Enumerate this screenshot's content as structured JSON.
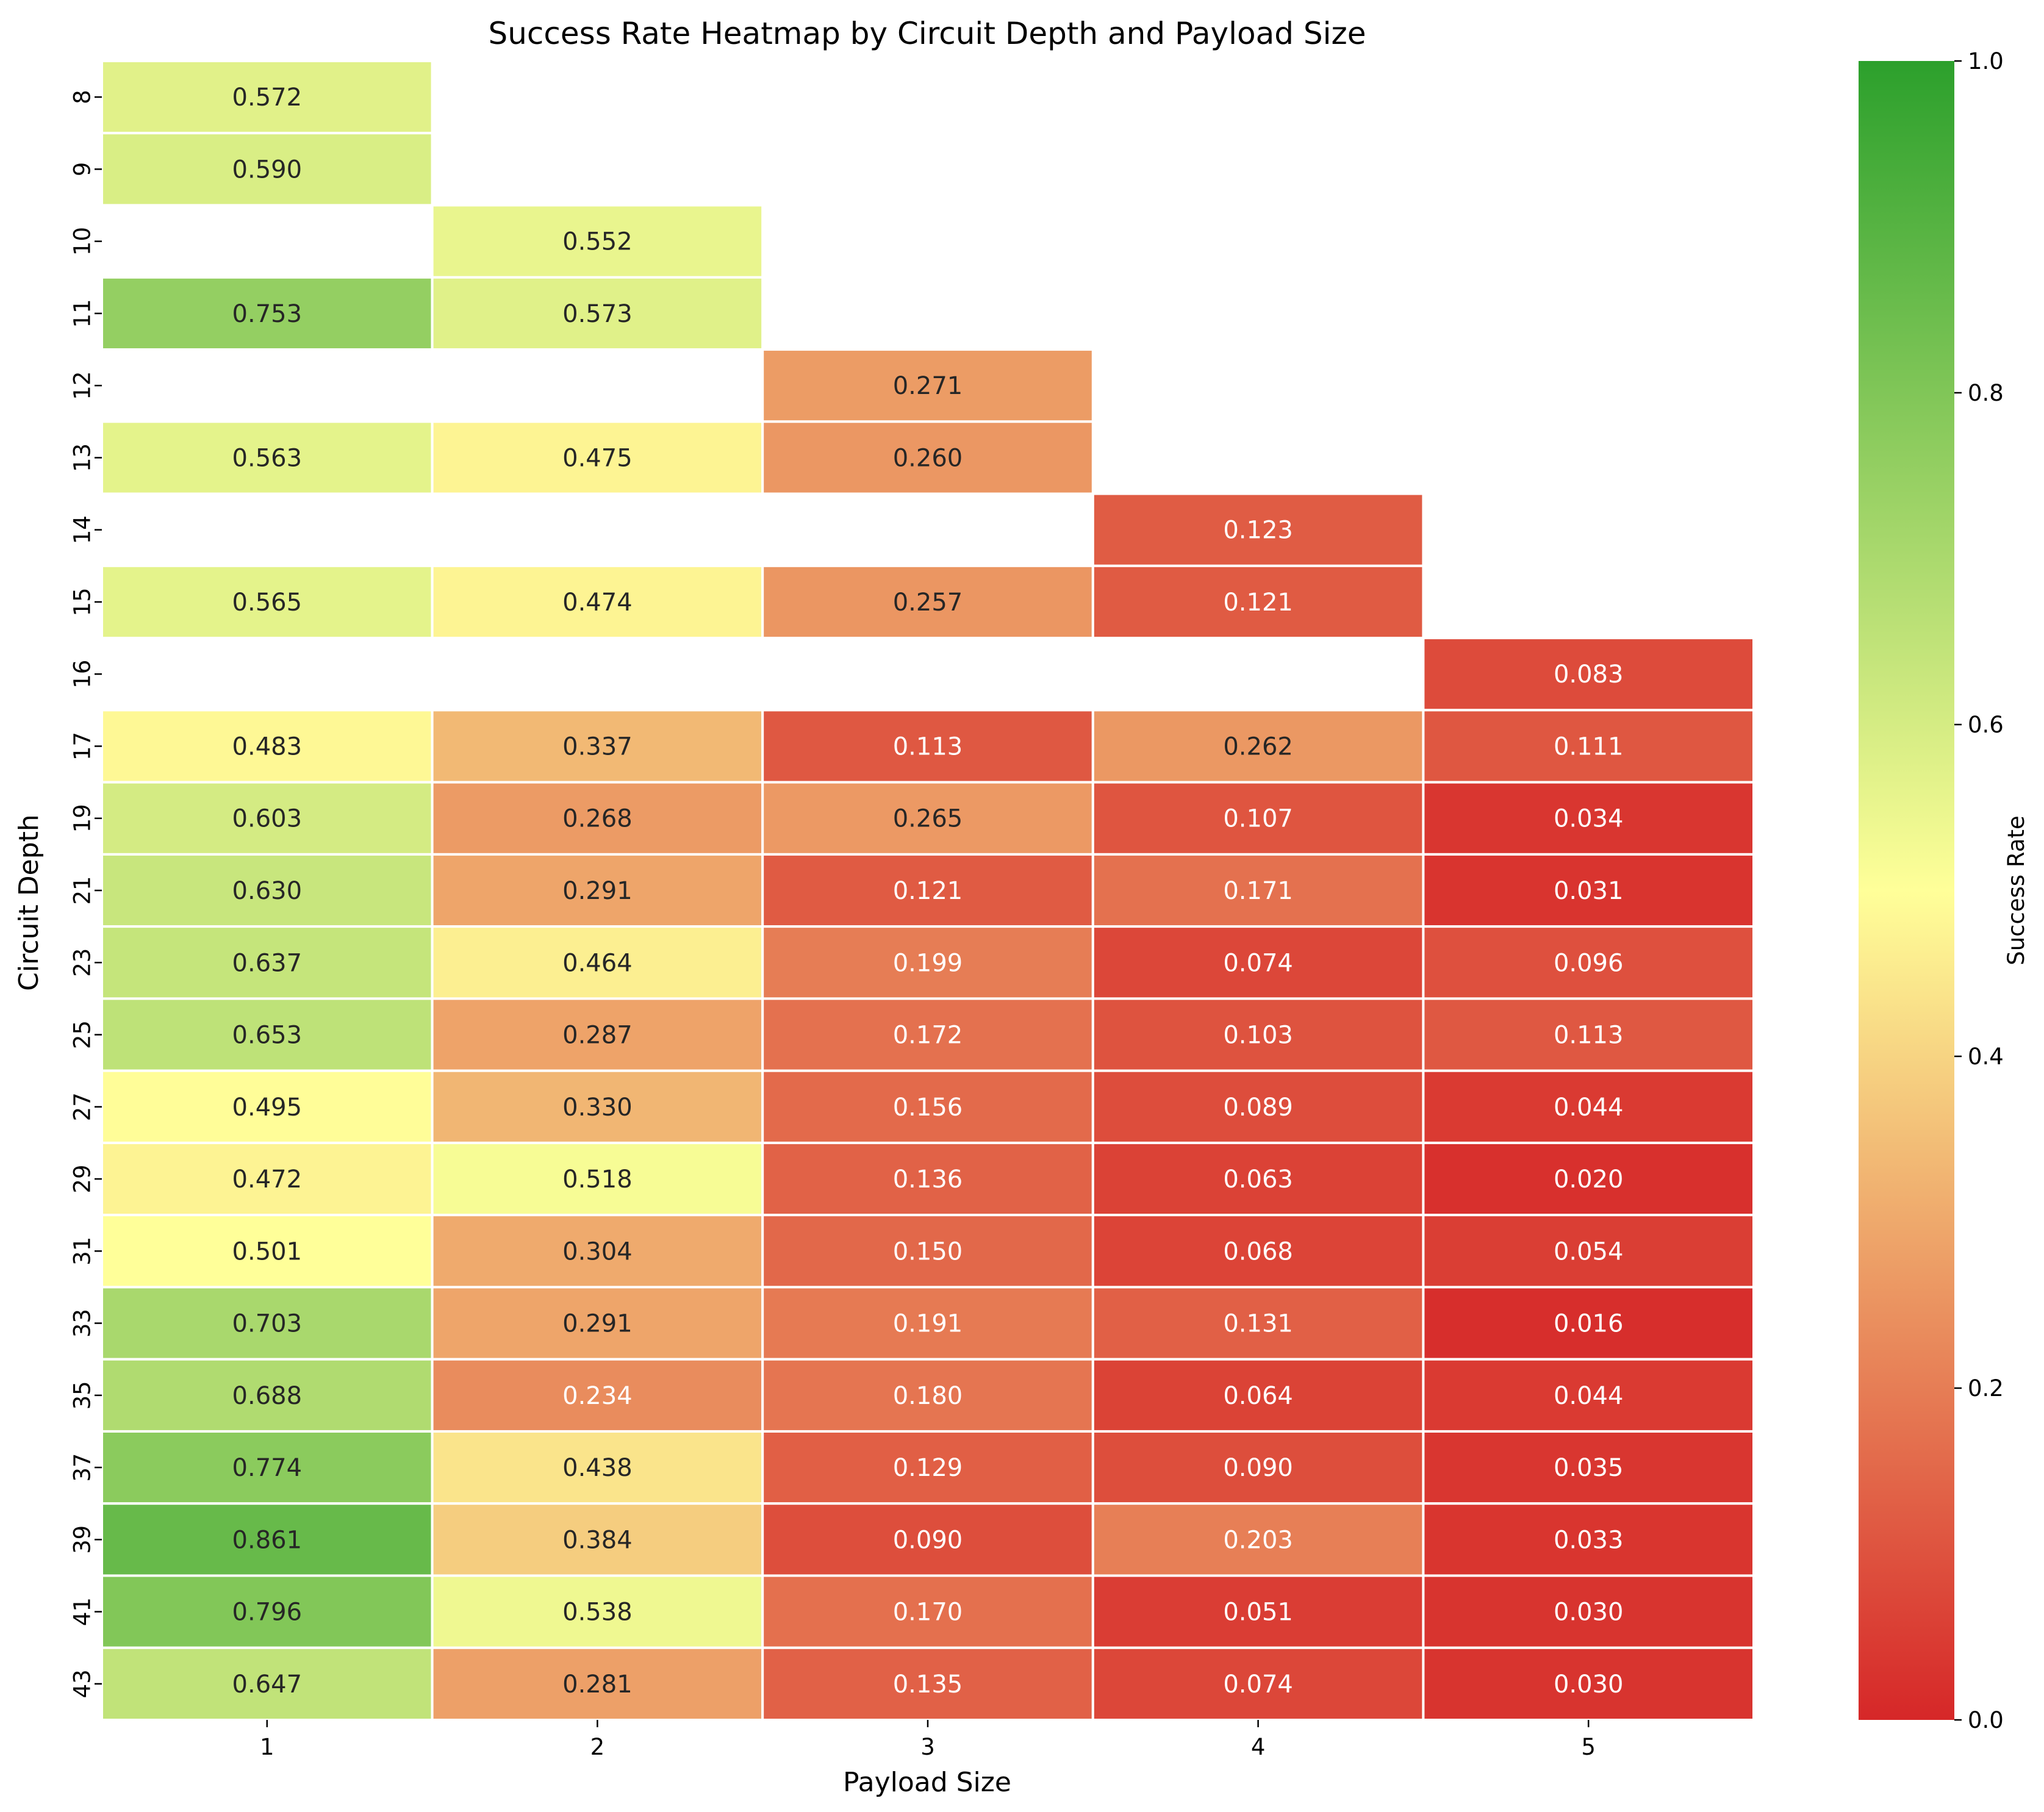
{
  "chart_data": {
    "type": "heatmap",
    "title": "Success Rate Heatmap by Circuit Depth and Payload Size",
    "xlabel": "Payload Size",
    "ylabel": "Circuit Depth",
    "x_categories": [
      "1",
      "2",
      "3",
      "4",
      "5"
    ],
    "y_categories": [
      "8",
      "9",
      "10",
      "11",
      "12",
      "13",
      "14",
      "15",
      "16",
      "17",
      "19",
      "21",
      "23",
      "25",
      "27",
      "29",
      "31",
      "33",
      "35",
      "37",
      "39",
      "41",
      "43"
    ],
    "values": [
      [
        0.572,
        null,
        null,
        null,
        null
      ],
      [
        0.59,
        null,
        null,
        null,
        null
      ],
      [
        null,
        0.552,
        null,
        null,
        null
      ],
      [
        0.753,
        0.573,
        null,
        null,
        null
      ],
      [
        null,
        null,
        0.271,
        null,
        null
      ],
      [
        0.563,
        0.475,
        0.26,
        null,
        null
      ],
      [
        null,
        null,
        null,
        0.123,
        null
      ],
      [
        0.565,
        0.474,
        0.257,
        0.121,
        null
      ],
      [
        null,
        null,
        null,
        null,
        0.083
      ],
      [
        0.483,
        0.337,
        0.113,
        0.262,
        0.111
      ],
      [
        0.603,
        0.268,
        0.265,
        0.107,
        0.034
      ],
      [
        0.63,
        0.291,
        0.121,
        0.171,
        0.031
      ],
      [
        0.637,
        0.464,
        0.199,
        0.074,
        0.096
      ],
      [
        0.653,
        0.287,
        0.172,
        0.103,
        0.113
      ],
      [
        0.495,
        0.33,
        0.156,
        0.089,
        0.044
      ],
      [
        0.472,
        0.518,
        0.136,
        0.063,
        0.02
      ],
      [
        0.501,
        0.304,
        0.15,
        0.068,
        0.054
      ],
      [
        0.703,
        0.291,
        0.191,
        0.131,
        0.016
      ],
      [
        0.688,
        0.234,
        0.18,
        0.064,
        0.044
      ],
      [
        0.774,
        0.438,
        0.129,
        0.09,
        0.035
      ],
      [
        0.861,
        0.384,
        0.09,
        0.203,
        0.033
      ],
      [
        0.796,
        0.538,
        0.17,
        0.051,
        0.03
      ],
      [
        0.647,
        0.281,
        0.135,
        0.074,
        0.03
      ]
    ],
    "colorbar": {
      "label": "Success Rate",
      "range": [
        0.0,
        1.0
      ],
      "ticks": [
        "0.0",
        "0.2",
        "0.4",
        "0.6",
        "0.8",
        "1.0"
      ],
      "colors": [
        "#d62728",
        "#ffff99",
        "#2ca02c"
      ]
    },
    "grid": false,
    "cell_border_color": "#ffffff"
  }
}
